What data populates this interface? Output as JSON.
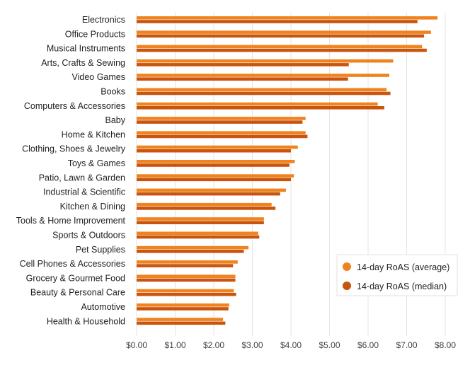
{
  "chart_data": {
    "type": "bar",
    "orientation": "horizontal",
    "title": "",
    "xlabel": "",
    "ylabel": "",
    "xlim": [
      0,
      8
    ],
    "x_ticks": [
      "$0.00",
      "$1.00",
      "$2.00",
      "$3.00",
      "$4.00",
      "$5.00",
      "$6.00",
      "$7.00",
      "$8.00"
    ],
    "grid": "vertical",
    "legend_position": "bottom-right",
    "categories": [
      "Electronics",
      "Office Products",
      "Musical Instruments",
      "Arts, Crafts & Sewing",
      "Video Games",
      "Books",
      "Computers & Accessories",
      "Baby",
      "Home & Kitchen",
      "Clothing, Shoes & Jewelry",
      "Toys & Games",
      "Patio, Lawn & Garden",
      "Industrial & Scientific",
      "Kitchen & Dining",
      "Tools & Home Improvement",
      "Sports & Outdoors",
      "Pet Supplies",
      "Cell Phones & Accessories",
      "Grocery & Gourmet Food",
      "Beauty & Personal Care",
      "Automotive",
      "Health & Household"
    ],
    "series": [
      {
        "name": "14-day RoAS (average)",
        "color": "#F0831E",
        "values": [
          7.8,
          7.63,
          7.4,
          6.65,
          6.55,
          6.48,
          6.25,
          4.38,
          4.38,
          4.18,
          4.1,
          4.08,
          3.87,
          3.5,
          3.3,
          3.15,
          2.9,
          2.62,
          2.56,
          2.52,
          2.4,
          2.24
        ]
      },
      {
        "name": "14-day RoAS (median)",
        "color": "#C8540E",
        "values": [
          7.28,
          7.45,
          7.52,
          5.5,
          5.48,
          6.58,
          6.42,
          4.3,
          4.43,
          4.0,
          3.96,
          4.0,
          3.72,
          3.6,
          3.3,
          3.18,
          2.78,
          2.5,
          2.56,
          2.58,
          2.38,
          2.3
        ]
      }
    ]
  }
}
